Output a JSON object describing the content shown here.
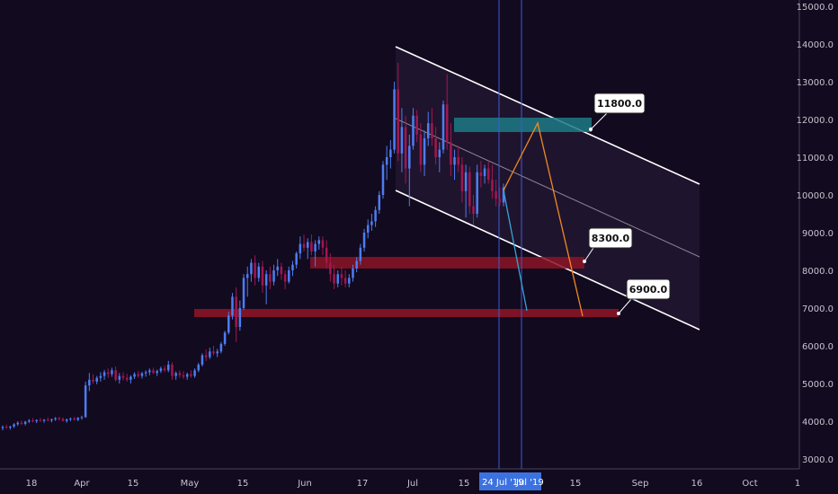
{
  "colors": {
    "background": "#120a1f",
    "candle_up": "#4d7df2",
    "candle_down": "#a2174f",
    "channel_line": "#ffffff",
    "channel_fill": "#2a1d38",
    "support_zone": "#8b1426",
    "resistance_zone": "#1d7a86",
    "projection_up": "#f08a24",
    "projection_blue": "#36a3d9",
    "vertical_lines": "#3b5bd6",
    "axis_text": "#c8c3cf",
    "cursor_label_bg": "#3c72e0"
  },
  "chart_data": {
    "type": "candlestick",
    "price_axis": {
      "ticks": [
        "15000.0",
        "14000.0",
        "13000.0",
        "12000.0",
        "11000.0",
        "10000.0",
        "9000.0",
        "8000.0",
        "7000.0",
        "6000.0",
        "5000.0",
        "4000.0",
        "3000.0"
      ],
      "range": [
        2700,
        15200
      ],
      "position": "right"
    },
    "time_axis": {
      "ticks": [
        "18",
        "Apr",
        "15",
        "May",
        "15",
        "Jun",
        "17",
        "Jul",
        "15",
        "15",
        "Sep",
        "16",
        "Oct",
        "1"
      ],
      "cursor_labels": [
        "24 Jul '19",
        "Jul '19"
      ]
    },
    "candles": [
      {
        "o": 3820,
        "h": 3890,
        "l": 3760,
        "c": 3850
      },
      {
        "o": 3850,
        "h": 3910,
        "l": 3800,
        "c": 3830
      },
      {
        "o": 3830,
        "h": 3880,
        "l": 3780,
        "c": 3860
      },
      {
        "o": 3860,
        "h": 3950,
        "l": 3820,
        "c": 3920
      },
      {
        "o": 3920,
        "h": 4000,
        "l": 3880,
        "c": 3960
      },
      {
        "o": 3960,
        "h": 4020,
        "l": 3900,
        "c": 3930
      },
      {
        "o": 3930,
        "h": 4010,
        "l": 3890,
        "c": 3990
      },
      {
        "o": 3990,
        "h": 4060,
        "l": 3950,
        "c": 4020
      },
      {
        "o": 4020,
        "h": 4080,
        "l": 3970,
        "c": 4000
      },
      {
        "o": 4000,
        "h": 4050,
        "l": 3950,
        "c": 4030
      },
      {
        "o": 4030,
        "h": 4090,
        "l": 3990,
        "c": 4010
      },
      {
        "o": 4010,
        "h": 4060,
        "l": 3960,
        "c": 4040
      },
      {
        "o": 4040,
        "h": 4100,
        "l": 4000,
        "c": 4020
      },
      {
        "o": 4020,
        "h": 4070,
        "l": 3970,
        "c": 4050
      },
      {
        "o": 4050,
        "h": 4110,
        "l": 4010,
        "c": 4080
      },
      {
        "o": 4080,
        "h": 4120,
        "l": 4020,
        "c": 4060
      },
      {
        "o": 4060,
        "h": 4100,
        "l": 3990,
        "c": 4010
      },
      {
        "o": 4010,
        "h": 4070,
        "l": 3960,
        "c": 4050
      },
      {
        "o": 4050,
        "h": 4100,
        "l": 4000,
        "c": 4070
      },
      {
        "o": 4070,
        "h": 4120,
        "l": 4020,
        "c": 4040
      },
      {
        "o": 4040,
        "h": 4110,
        "l": 4000,
        "c": 4090
      },
      {
        "o": 4090,
        "h": 4150,
        "l": 4040,
        "c": 4110
      },
      {
        "o": 4110,
        "h": 5050,
        "l": 4090,
        "c": 4950
      },
      {
        "o": 4950,
        "h": 5280,
        "l": 4800,
        "c": 5100
      },
      {
        "o": 5100,
        "h": 5250,
        "l": 4990,
        "c": 5050
      },
      {
        "o": 5050,
        "h": 5200,
        "l": 4980,
        "c": 5150
      },
      {
        "o": 5150,
        "h": 5300,
        "l": 5050,
        "c": 5200
      },
      {
        "o": 5200,
        "h": 5360,
        "l": 5100,
        "c": 5300
      },
      {
        "o": 5300,
        "h": 5400,
        "l": 5150,
        "c": 5250
      },
      {
        "o": 5250,
        "h": 5420,
        "l": 5180,
        "c": 5350
      },
      {
        "o": 5350,
        "h": 5450,
        "l": 5050,
        "c": 5100
      },
      {
        "o": 5100,
        "h": 5280,
        "l": 5000,
        "c": 5200
      },
      {
        "o": 5200,
        "h": 5300,
        "l": 5080,
        "c": 5150
      },
      {
        "o": 5150,
        "h": 5260,
        "l": 5050,
        "c": 5100
      },
      {
        "o": 5100,
        "h": 5220,
        "l": 5000,
        "c": 5180
      },
      {
        "o": 5180,
        "h": 5300,
        "l": 5120,
        "c": 5250
      },
      {
        "o": 5250,
        "h": 5330,
        "l": 5150,
        "c": 5200
      },
      {
        "o": 5200,
        "h": 5310,
        "l": 5130,
        "c": 5270
      },
      {
        "o": 5270,
        "h": 5350,
        "l": 5180,
        "c": 5300
      },
      {
        "o": 5300,
        "h": 5400,
        "l": 5220,
        "c": 5350
      },
      {
        "o": 5350,
        "h": 5420,
        "l": 5250,
        "c": 5280
      },
      {
        "o": 5280,
        "h": 5370,
        "l": 5200,
        "c": 5330
      },
      {
        "o": 5330,
        "h": 5450,
        "l": 5280,
        "c": 5400
      },
      {
        "o": 5400,
        "h": 5480,
        "l": 5300,
        "c": 5350
      },
      {
        "o": 5350,
        "h": 5600,
        "l": 5300,
        "c": 5500
      },
      {
        "o": 5500,
        "h": 5560,
        "l": 5100,
        "c": 5200
      },
      {
        "o": 5200,
        "h": 5320,
        "l": 5100,
        "c": 5280
      },
      {
        "o": 5280,
        "h": 5350,
        "l": 5150,
        "c": 5220
      },
      {
        "o": 5220,
        "h": 5330,
        "l": 5120,
        "c": 5180
      },
      {
        "o": 5180,
        "h": 5290,
        "l": 5100,
        "c": 5250
      },
      {
        "o": 5250,
        "h": 5350,
        "l": 5150,
        "c": 5200
      },
      {
        "o": 5200,
        "h": 5400,
        "l": 5150,
        "c": 5350
      },
      {
        "o": 5350,
        "h": 5550,
        "l": 5300,
        "c": 5500
      },
      {
        "o": 5500,
        "h": 5800,
        "l": 5450,
        "c": 5750
      },
      {
        "o": 5750,
        "h": 5900,
        "l": 5600,
        "c": 5700
      },
      {
        "o": 5700,
        "h": 5950,
        "l": 5650,
        "c": 5850
      },
      {
        "o": 5850,
        "h": 6000,
        "l": 5750,
        "c": 5800
      },
      {
        "o": 5800,
        "h": 5920,
        "l": 5700,
        "c": 5850
      },
      {
        "o": 5850,
        "h": 6100,
        "l": 5800,
        "c": 6050
      },
      {
        "o": 6050,
        "h": 6400,
        "l": 6000,
        "c": 6350
      },
      {
        "o": 6350,
        "h": 6900,
        "l": 6300,
        "c": 6800
      },
      {
        "o": 6800,
        "h": 7400,
        "l": 6700,
        "c": 7300
      },
      {
        "o": 7300,
        "h": 7550,
        "l": 6100,
        "c": 6500
      },
      {
        "o": 6500,
        "h": 7200,
        "l": 6400,
        "c": 7000
      },
      {
        "o": 7000,
        "h": 7900,
        "l": 6950,
        "c": 7800
      },
      {
        "o": 7800,
        "h": 8100,
        "l": 7300,
        "c": 7900
      },
      {
        "o": 7900,
        "h": 8300,
        "l": 7700,
        "c": 8200
      },
      {
        "o": 8200,
        "h": 8400,
        "l": 7600,
        "c": 7800
      },
      {
        "o": 7800,
        "h": 8200,
        "l": 7700,
        "c": 8100
      },
      {
        "o": 8100,
        "h": 8250,
        "l": 7400,
        "c": 7600
      },
      {
        "o": 7600,
        "h": 8000,
        "l": 7100,
        "c": 7900
      },
      {
        "o": 7900,
        "h": 8100,
        "l": 7500,
        "c": 7700
      },
      {
        "o": 7700,
        "h": 8150,
        "l": 7600,
        "c": 8000
      },
      {
        "o": 8000,
        "h": 8300,
        "l": 7850,
        "c": 8100
      },
      {
        "o": 8100,
        "h": 8200,
        "l": 7750,
        "c": 7900
      },
      {
        "o": 7900,
        "h": 8000,
        "l": 7500,
        "c": 7700
      },
      {
        "o": 7700,
        "h": 8100,
        "l": 7650,
        "c": 8000
      },
      {
        "o": 8000,
        "h": 8250,
        "l": 7850,
        "c": 8150
      },
      {
        "o": 8150,
        "h": 8500,
        "l": 8050,
        "c": 8450
      },
      {
        "o": 8450,
        "h": 8900,
        "l": 8300,
        "c": 8700
      },
      {
        "o": 8700,
        "h": 8950,
        "l": 8500,
        "c": 8600
      },
      {
        "o": 8600,
        "h": 8850,
        "l": 8300,
        "c": 8750
      },
      {
        "o": 8750,
        "h": 8950,
        "l": 8400,
        "c": 8500
      },
      {
        "o": 8500,
        "h": 8800,
        "l": 8100,
        "c": 8700
      },
      {
        "o": 8700,
        "h": 8900,
        "l": 8550,
        "c": 8800
      },
      {
        "o": 8800,
        "h": 8900,
        "l": 8400,
        "c": 8600
      },
      {
        "o": 8600,
        "h": 8800,
        "l": 8050,
        "c": 8200
      },
      {
        "o": 8200,
        "h": 8450,
        "l": 7700,
        "c": 7900
      },
      {
        "o": 7900,
        "h": 8150,
        "l": 7500,
        "c": 7650
      },
      {
        "o": 7650,
        "h": 8000,
        "l": 7550,
        "c": 7900
      },
      {
        "o": 7900,
        "h": 8100,
        "l": 7600,
        "c": 7800
      },
      {
        "o": 7800,
        "h": 8000,
        "l": 7550,
        "c": 7650
      },
      {
        "o": 7650,
        "h": 7900,
        "l": 7550,
        "c": 7800
      },
      {
        "o": 7800,
        "h": 8150,
        "l": 7700,
        "c": 8050
      },
      {
        "o": 8050,
        "h": 8350,
        "l": 7950,
        "c": 8250
      },
      {
        "o": 8250,
        "h": 8700,
        "l": 8150,
        "c": 8600
      },
      {
        "o": 8600,
        "h": 9100,
        "l": 8500,
        "c": 9000
      },
      {
        "o": 9000,
        "h": 9350,
        "l": 8850,
        "c": 9200
      },
      {
        "o": 9200,
        "h": 9500,
        "l": 9050,
        "c": 9300
      },
      {
        "o": 9300,
        "h": 9700,
        "l": 9150,
        "c": 9600
      },
      {
        "o": 9600,
        "h": 10100,
        "l": 9500,
        "c": 10000
      },
      {
        "o": 10000,
        "h": 10900,
        "l": 9900,
        "c": 10800
      },
      {
        "o": 10800,
        "h": 11300,
        "l": 10400,
        "c": 11000
      },
      {
        "o": 11000,
        "h": 11450,
        "l": 10700,
        "c": 11200
      },
      {
        "o": 11200,
        "h": 13000,
        "l": 11100,
        "c": 12800
      },
      {
        "o": 12800,
        "h": 13500,
        "l": 10900,
        "c": 11100
      },
      {
        "o": 11100,
        "h": 12300,
        "l": 10600,
        "c": 11800
      },
      {
        "o": 11800,
        "h": 12100,
        "l": 10300,
        "c": 10700
      },
      {
        "o": 10700,
        "h": 11600,
        "l": 9700,
        "c": 11300
      },
      {
        "o": 11300,
        "h": 12300,
        "l": 11200,
        "c": 12100
      },
      {
        "o": 12100,
        "h": 12250,
        "l": 11400,
        "c": 11600
      },
      {
        "o": 11600,
        "h": 11900,
        "l": 10600,
        "c": 10800
      },
      {
        "o": 10800,
        "h": 11700,
        "l": 10500,
        "c": 11500
      },
      {
        "o": 11500,
        "h": 12200,
        "l": 11300,
        "c": 11900
      },
      {
        "o": 11900,
        "h": 12300,
        "l": 11300,
        "c": 11500
      },
      {
        "o": 11500,
        "h": 11800,
        "l": 10800,
        "c": 11000
      },
      {
        "o": 11000,
        "h": 11400,
        "l": 10600,
        "c": 11200
      },
      {
        "o": 11200,
        "h": 12500,
        "l": 11100,
        "c": 12400
      },
      {
        "o": 12400,
        "h": 13200,
        "l": 11200,
        "c": 11400
      },
      {
        "o": 11400,
        "h": 11900,
        "l": 10500,
        "c": 10800
      },
      {
        "o": 10800,
        "h": 11200,
        "l": 10400,
        "c": 11000
      },
      {
        "o": 11000,
        "h": 11300,
        "l": 10600,
        "c": 10800
      },
      {
        "o": 10800,
        "h": 11000,
        "l": 9800,
        "c": 10100
      },
      {
        "o": 10100,
        "h": 10800,
        "l": 9400,
        "c": 10600
      },
      {
        "o": 10600,
        "h": 10750,
        "l": 9500,
        "c": 9700
      },
      {
        "o": 9700,
        "h": 10000,
        "l": 9200,
        "c": 9500
      },
      {
        "o": 9500,
        "h": 10800,
        "l": 9400,
        "c": 10600
      },
      {
        "o": 10600,
        "h": 10900,
        "l": 10200,
        "c": 10500
      },
      {
        "o": 10500,
        "h": 10800,
        "l": 10300,
        "c": 10700
      },
      {
        "o": 10700,
        "h": 10900,
        "l": 10300,
        "c": 10400
      },
      {
        "o": 10400,
        "h": 10800,
        "l": 9900,
        "c": 10100
      },
      {
        "o": 10100,
        "h": 10400,
        "l": 9700,
        "c": 9900
      },
      {
        "o": 9900,
        "h": 10200,
        "l": 9700,
        "c": 9800
      },
      {
        "o": 9800,
        "h": 10300,
        "l": 9700,
        "c": 10200
      }
    ],
    "annotations": [
      {
        "label": "11800.0",
        "kind": "resistance_zone",
        "price_low": 11700,
        "price_high": 12050
      },
      {
        "label": "8300.0",
        "kind": "support_zone",
        "price_low": 8100,
        "price_high": 8400
      },
      {
        "label": "6900.0",
        "kind": "support_zone",
        "price_low": 6800,
        "price_high": 7000
      }
    ],
    "grid": false
  }
}
